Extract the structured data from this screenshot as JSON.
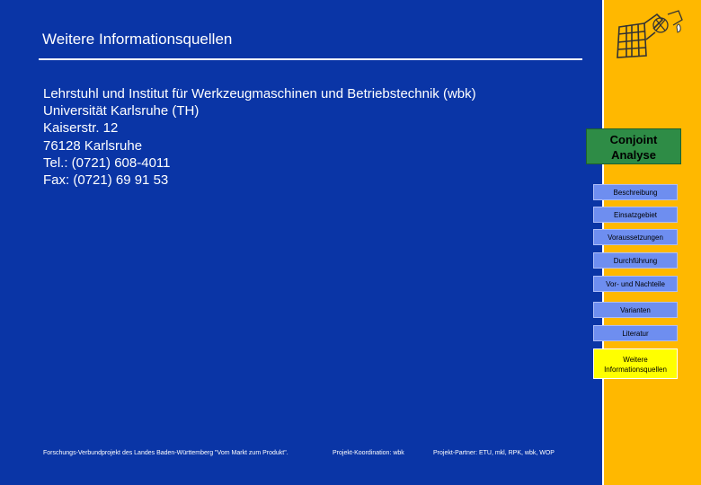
{
  "header": {
    "title": "Weitere Informationsquellen"
  },
  "address": {
    "lines": [
      "Lehrstuhl und Institut für Werkzeugmaschinen und Betriebstechnik (wbk)",
      "Universität Karlsruhe (TH)",
      "Kaiserstr. 12",
      "76128 Karlsruhe",
      "Tel.: (0721) 608-4011",
      "Fax: (0721) 69 91 53"
    ]
  },
  "sidebar": {
    "section_label": "Conjoint Analyse",
    "items": [
      {
        "label": "Beschreibung"
      },
      {
        "label": "Einsatzgebiet"
      },
      {
        "label": "Voraussetzungen"
      },
      {
        "label": "Durchführung"
      },
      {
        "label": "Vor- und Nachteile"
      },
      {
        "label": "Varianten"
      },
      {
        "label": "Literatur"
      },
      {
        "label": "Weitere Informationsquellen",
        "active": true
      }
    ]
  },
  "footer": {
    "project": "Forschungs-Verbundprojekt des Landes Baden-Württemberg \"Vom Markt zum Produkt\".",
    "coordination": "Projekt-Koordination: wbk",
    "partners": "Projekt-Partner: ETU, mkl, RPK, wbk, WOP"
  },
  "colors": {
    "main_bg": "#0a35a6",
    "sidebar_bg": "#ffb800",
    "nav_bg": "#6e8ef0",
    "active_bg": "#ffff00",
    "section_bg": "#2e8c46"
  },
  "icons": {
    "logo": "grid-puzzle-logo-icon"
  }
}
